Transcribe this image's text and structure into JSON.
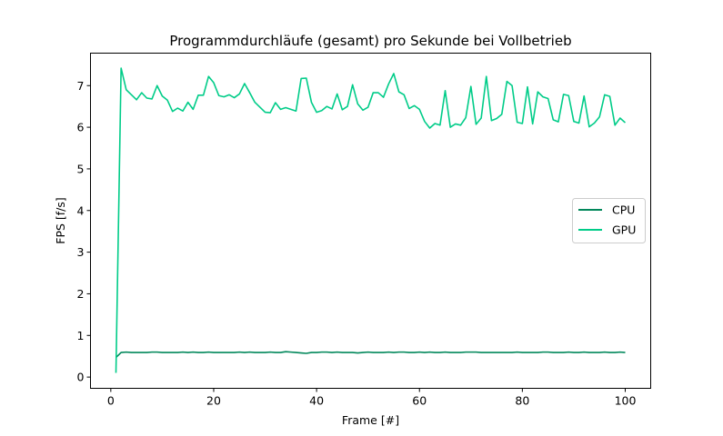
{
  "chart_data": {
    "type": "line",
    "title": "Programmdurchläufe (gesamt) pro Sekunde bei Vollbetrieb",
    "xlabel": "Frame [#]",
    "ylabel": "FPS [f/s]",
    "xlim": [
      -3.95,
      104.95
    ],
    "ylim": [
      -0.27,
      7.78
    ],
    "xticks": [
      0,
      20,
      40,
      60,
      80,
      100
    ],
    "yticks": [
      0,
      1,
      2,
      3,
      4,
      5,
      6,
      7
    ],
    "grid": false,
    "legend_position": "center-right",
    "series": [
      {
        "name": "CPU",
        "color": "#00875a",
        "x": [
          1,
          2,
          3,
          4,
          5,
          6,
          7,
          8,
          9,
          10,
          11,
          12,
          13,
          14,
          15,
          16,
          17,
          18,
          19,
          20,
          21,
          22,
          23,
          24,
          25,
          26,
          27,
          28,
          29,
          30,
          31,
          32,
          33,
          34,
          35,
          36,
          37,
          38,
          39,
          40,
          41,
          42,
          43,
          44,
          45,
          46,
          47,
          48,
          49,
          50,
          51,
          52,
          53,
          54,
          55,
          56,
          57,
          58,
          59,
          60,
          61,
          62,
          63,
          64,
          65,
          66,
          67,
          68,
          69,
          70,
          71,
          72,
          73,
          74,
          75,
          76,
          77,
          78,
          79,
          80,
          81,
          82,
          83,
          84,
          85,
          86,
          87,
          88,
          89,
          90,
          91,
          92,
          93,
          94,
          95,
          96,
          97,
          98,
          99,
          100
        ],
        "values": [
          0.47,
          0.59,
          0.6,
          0.59,
          0.59,
          0.59,
          0.59,
          0.6,
          0.6,
          0.59,
          0.59,
          0.59,
          0.59,
          0.6,
          0.59,
          0.6,
          0.59,
          0.59,
          0.6,
          0.59,
          0.59,
          0.59,
          0.59,
          0.59,
          0.6,
          0.59,
          0.6,
          0.59,
          0.59,
          0.59,
          0.6,
          0.59,
          0.59,
          0.61,
          0.6,
          0.59,
          0.58,
          0.57,
          0.59,
          0.59,
          0.6,
          0.6,
          0.59,
          0.6,
          0.59,
          0.59,
          0.59,
          0.58,
          0.59,
          0.6,
          0.59,
          0.59,
          0.59,
          0.6,
          0.59,
          0.6,
          0.6,
          0.59,
          0.59,
          0.6,
          0.59,
          0.6,
          0.59,
          0.59,
          0.6,
          0.59,
          0.59,
          0.59,
          0.6,
          0.6,
          0.6,
          0.59,
          0.59,
          0.59,
          0.59,
          0.59,
          0.59,
          0.59,
          0.6,
          0.59,
          0.59,
          0.59,
          0.59,
          0.6,
          0.6,
          0.59,
          0.59,
          0.59,
          0.6,
          0.59,
          0.59,
          0.6,
          0.59,
          0.59,
          0.59,
          0.6,
          0.59,
          0.59,
          0.6,
          0.59
        ]
      },
      {
        "name": "GPU",
        "color": "#00cc88",
        "x": [
          1,
          2,
          3,
          4,
          5,
          6,
          7,
          8,
          9,
          10,
          11,
          12,
          13,
          14,
          15,
          16,
          17,
          18,
          19,
          20,
          21,
          22,
          23,
          24,
          25,
          26,
          27,
          28,
          29,
          30,
          31,
          32,
          33,
          34,
          35,
          36,
          37,
          38,
          39,
          40,
          41,
          42,
          43,
          44,
          45,
          46,
          47,
          48,
          49,
          50,
          51,
          52,
          53,
          54,
          55,
          56,
          57,
          58,
          59,
          60,
          61,
          62,
          63,
          64,
          65,
          66,
          67,
          68,
          69,
          70,
          71,
          72,
          73,
          74,
          75,
          76,
          77,
          78,
          79,
          80,
          81,
          82,
          83,
          84,
          85,
          86,
          87,
          88,
          89,
          90,
          91,
          92,
          93,
          94,
          95,
          96,
          97,
          98,
          99,
          100
        ],
        "values": [
          0.1,
          7.42,
          6.9,
          6.78,
          6.66,
          6.83,
          6.7,
          6.68,
          7.0,
          6.75,
          6.65,
          6.38,
          6.46,
          6.39,
          6.6,
          6.43,
          6.77,
          6.77,
          7.22,
          7.07,
          6.76,
          6.73,
          6.78,
          6.71,
          6.8,
          7.05,
          6.83,
          6.6,
          6.48,
          6.36,
          6.35,
          6.59,
          6.43,
          6.47,
          6.43,
          6.39,
          7.17,
          7.18,
          6.6,
          6.36,
          6.4,
          6.5,
          6.44,
          6.8,
          6.42,
          6.5,
          7.02,
          6.56,
          6.41,
          6.48,
          6.83,
          6.83,
          6.72,
          7.04,
          7.29,
          6.85,
          6.78,
          6.45,
          6.52,
          6.43,
          6.14,
          5.98,
          6.09,
          6.05,
          6.88,
          6.0,
          6.08,
          6.05,
          6.23,
          6.98,
          6.07,
          6.22,
          7.22,
          6.16,
          6.21,
          6.31,
          7.1,
          7.0,
          6.12,
          6.09,
          6.97,
          6.08,
          6.85,
          6.73,
          6.69,
          6.18,
          6.13,
          6.79,
          6.76,
          6.14,
          6.1,
          6.75,
          6.01,
          6.1,
          6.25,
          6.78,
          6.74,
          6.05,
          6.22,
          6.11
        ]
      }
    ]
  }
}
